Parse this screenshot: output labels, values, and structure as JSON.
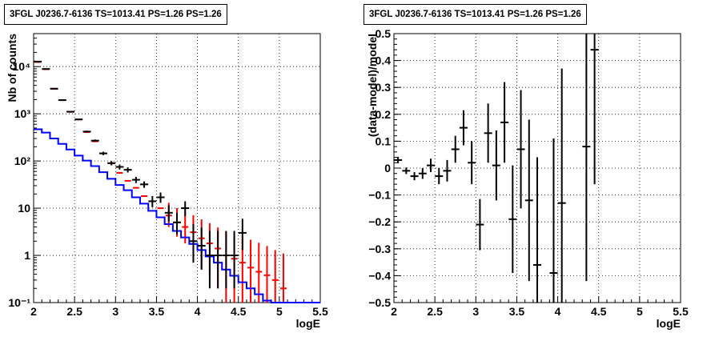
{
  "chart_data": [
    {
      "type": "scatter",
      "title": "3FGL J0236.7-6136 TS=1013.41 PS=1.26 PS=1.26",
      "xlabel": "logE",
      "ylabel": "Nb of counts",
      "xlim": [
        2,
        5.5
      ],
      "ylim": [
        0.1,
        50000
      ],
      "yscale": "log",
      "grid": true,
      "x_ticks": [
        2,
        2.5,
        3,
        3.5,
        4,
        4.5,
        5,
        5.5
      ],
      "x_tick_labels": [
        "2",
        "2.5",
        "3",
        "3.5",
        "4",
        "4.5",
        "5",
        "5.5"
      ],
      "y_ticks": [
        0.1,
        1,
        10,
        100,
        1000,
        10000
      ],
      "y_tick_labels": [
        "10⁻¹",
        "1",
        "10",
        "10²",
        "10³",
        "10⁴"
      ],
      "colors": {
        "data": "#000000",
        "model": "#0000ff",
        "counts": "#ff0000"
      },
      "series": [
        {
          "role": "counts",
          "x": [
            2.05,
            2.15,
            2.25,
            2.35,
            2.45,
            2.55,
            2.65,
            2.75,
            2.85,
            2.95,
            3.05,
            3.15,
            3.25,
            3.35,
            3.45,
            3.55,
            3.65,
            3.75,
            3.85,
            3.95,
            4.05,
            4.15,
            4.25,
            4.35,
            4.45,
            4.55,
            4.65,
            4.75,
            4.85,
            4.95,
            5.05
          ],
          "y": [
            12500,
            8800,
            3400,
            1950,
            1100,
            760,
            410,
            260,
            145,
            90,
            56,
            38,
            27,
            18,
            14,
            10,
            7,
            5,
            4,
            3.1,
            2.3,
            1.8,
            1.4,
            1.0,
            0.85,
            0.7,
            0.55,
            0.45,
            0.38,
            0.3,
            0.2
          ],
          "err_low": [
            0,
            0,
            0,
            0,
            0,
            0,
            0,
            0,
            0,
            0,
            0,
            0,
            0,
            0,
            0,
            0,
            3,
            2.5,
            2.2,
            2,
            1.8,
            1.4,
            1.2,
            0.9,
            0.8,
            0.65,
            0.52,
            0.43,
            0.37,
            0.29,
            0.19
          ],
          "err_high": [
            0,
            0,
            0,
            0,
            0,
            0,
            0,
            0,
            0,
            0,
            0,
            0,
            0,
            0,
            0,
            0,
            6,
            5,
            5,
            4,
            3.5,
            3,
            2.5,
            2.2,
            2,
            1.8,
            1.6,
            1.4,
            1.2,
            1.0,
            0.9
          ]
        },
        {
          "role": "model",
          "type": "step",
          "edges": [
            2.0,
            2.1,
            2.2,
            2.3,
            2.4,
            2.5,
            2.6,
            2.7,
            2.8,
            2.9,
            3.0,
            3.1,
            3.2,
            3.3,
            3.4,
            3.5,
            3.6,
            3.7,
            3.8,
            3.9,
            4.0,
            4.1,
            4.2,
            4.3,
            4.4,
            4.5,
            4.6,
            4.7,
            4.8,
            4.9,
            5.0,
            5.1,
            5.2,
            5.3,
            5.4,
            5.5
          ],
          "values": [
            470,
            400,
            300,
            230,
            175,
            130,
            102,
            78,
            58,
            42,
            31,
            24,
            17,
            12.5,
            8.8,
            6.4,
            4.6,
            3.3,
            2.4,
            1.75,
            1.3,
            0.95,
            0.7,
            0.5,
            0.37,
            0.27,
            0.2,
            0.15,
            0.11,
            0.1,
            0.1,
            0.1,
            0.1,
            0.1,
            0.1
          ]
        },
        {
          "role": "data",
          "x": [
            2.05,
            2.15,
            2.25,
            2.35,
            2.45,
            2.55,
            2.65,
            2.75,
            2.85,
            2.95,
            3.05,
            3.15,
            3.25,
            3.35,
            3.45,
            3.55,
            3.65,
            3.75,
            3.85,
            3.95,
            4.05,
            4.15,
            4.25,
            4.35,
            4.45,
            4.55
          ],
          "y": [
            12800,
            8900,
            3400,
            1950,
            1110,
            760,
            420,
            270,
            145,
            90,
            75,
            65,
            40,
            32,
            14,
            17,
            8,
            5,
            10,
            2,
            1.6,
            1.0,
            1.0,
            1.0,
            1.0,
            3
          ],
          "err_low": [
            0,
            0,
            0,
            0,
            0,
            0,
            20,
            15,
            12,
            9,
            9,
            8,
            6,
            5,
            3.5,
            4,
            2.8,
            2.2,
            3.2,
            1.3,
            1.1,
            0.8,
            0.8,
            0.8,
            0.8,
            1.7
          ],
          "err_high": [
            0,
            0,
            0,
            0,
            0,
            0,
            20,
            15,
            12,
            9,
            9,
            8,
            6,
            5,
            4,
            4.5,
            3.5,
            3,
            4,
            2.6,
            2.3,
            2.3,
            2.3,
            2.3,
            2.3,
            3
          ]
        }
      ]
    },
    {
      "type": "scatter",
      "title": "3FGL J0236.7-6136 TS=1013.41 PS=1.26 PS=1.26",
      "xlabel": "logE",
      "ylabel": "(data-model)/model",
      "xlim": [
        2,
        5.5
      ],
      "ylim": [
        -0.5,
        0.5
      ],
      "grid": true,
      "x_ticks": [
        2,
        2.5,
        3,
        3.5,
        4,
        4.5,
        5,
        5.5
      ],
      "x_tick_labels": [
        "2",
        "2.5",
        "3",
        "3.5",
        "4",
        "4.5",
        "5",
        "5.5"
      ],
      "y_ticks": [
        -0.5,
        -0.4,
        -0.3,
        -0.2,
        -0.1,
        0,
        0.1,
        0.2,
        0.3,
        0.4,
        0.5
      ],
      "y_tick_labels": [
        "−0.5",
        "−0.4",
        "−0.3",
        "−0.2",
        "−0.1",
        "0",
        "0.1",
        "0.2",
        "0.3",
        "0.4",
        "0.5"
      ],
      "colors": {
        "data": "#000000"
      },
      "series": [
        {
          "role": "data",
          "x": [
            2.05,
            2.15,
            2.25,
            2.35,
            2.45,
            2.55,
            2.65,
            2.75,
            2.85,
            2.95,
            3.05,
            3.15,
            3.25,
            3.35,
            3.45,
            3.55,
            3.65,
            3.75,
            3.95,
            4.05,
            4.35,
            4.45
          ],
          "y": [
            0.03,
            -0.01,
            -0.03,
            -0.02,
            0.01,
            -0.03,
            -0.01,
            0.07,
            0.15,
            0.02,
            -0.21,
            0.13,
            0.01,
            0.17,
            -0.19,
            0.07,
            -0.12,
            -0.36,
            -0.39,
            -0.13,
            0.08,
            0.44
          ],
          "err": [
            0.012,
            0.012,
            0.015,
            0.02,
            0.025,
            0.03,
            0.04,
            0.05,
            0.065,
            0.08,
            0.095,
            0.11,
            0.13,
            0.15,
            0.2,
            0.22,
            0.3,
            0.4,
            0.5,
            0.5,
            0.5,
            0.5
          ]
        }
      ]
    }
  ]
}
